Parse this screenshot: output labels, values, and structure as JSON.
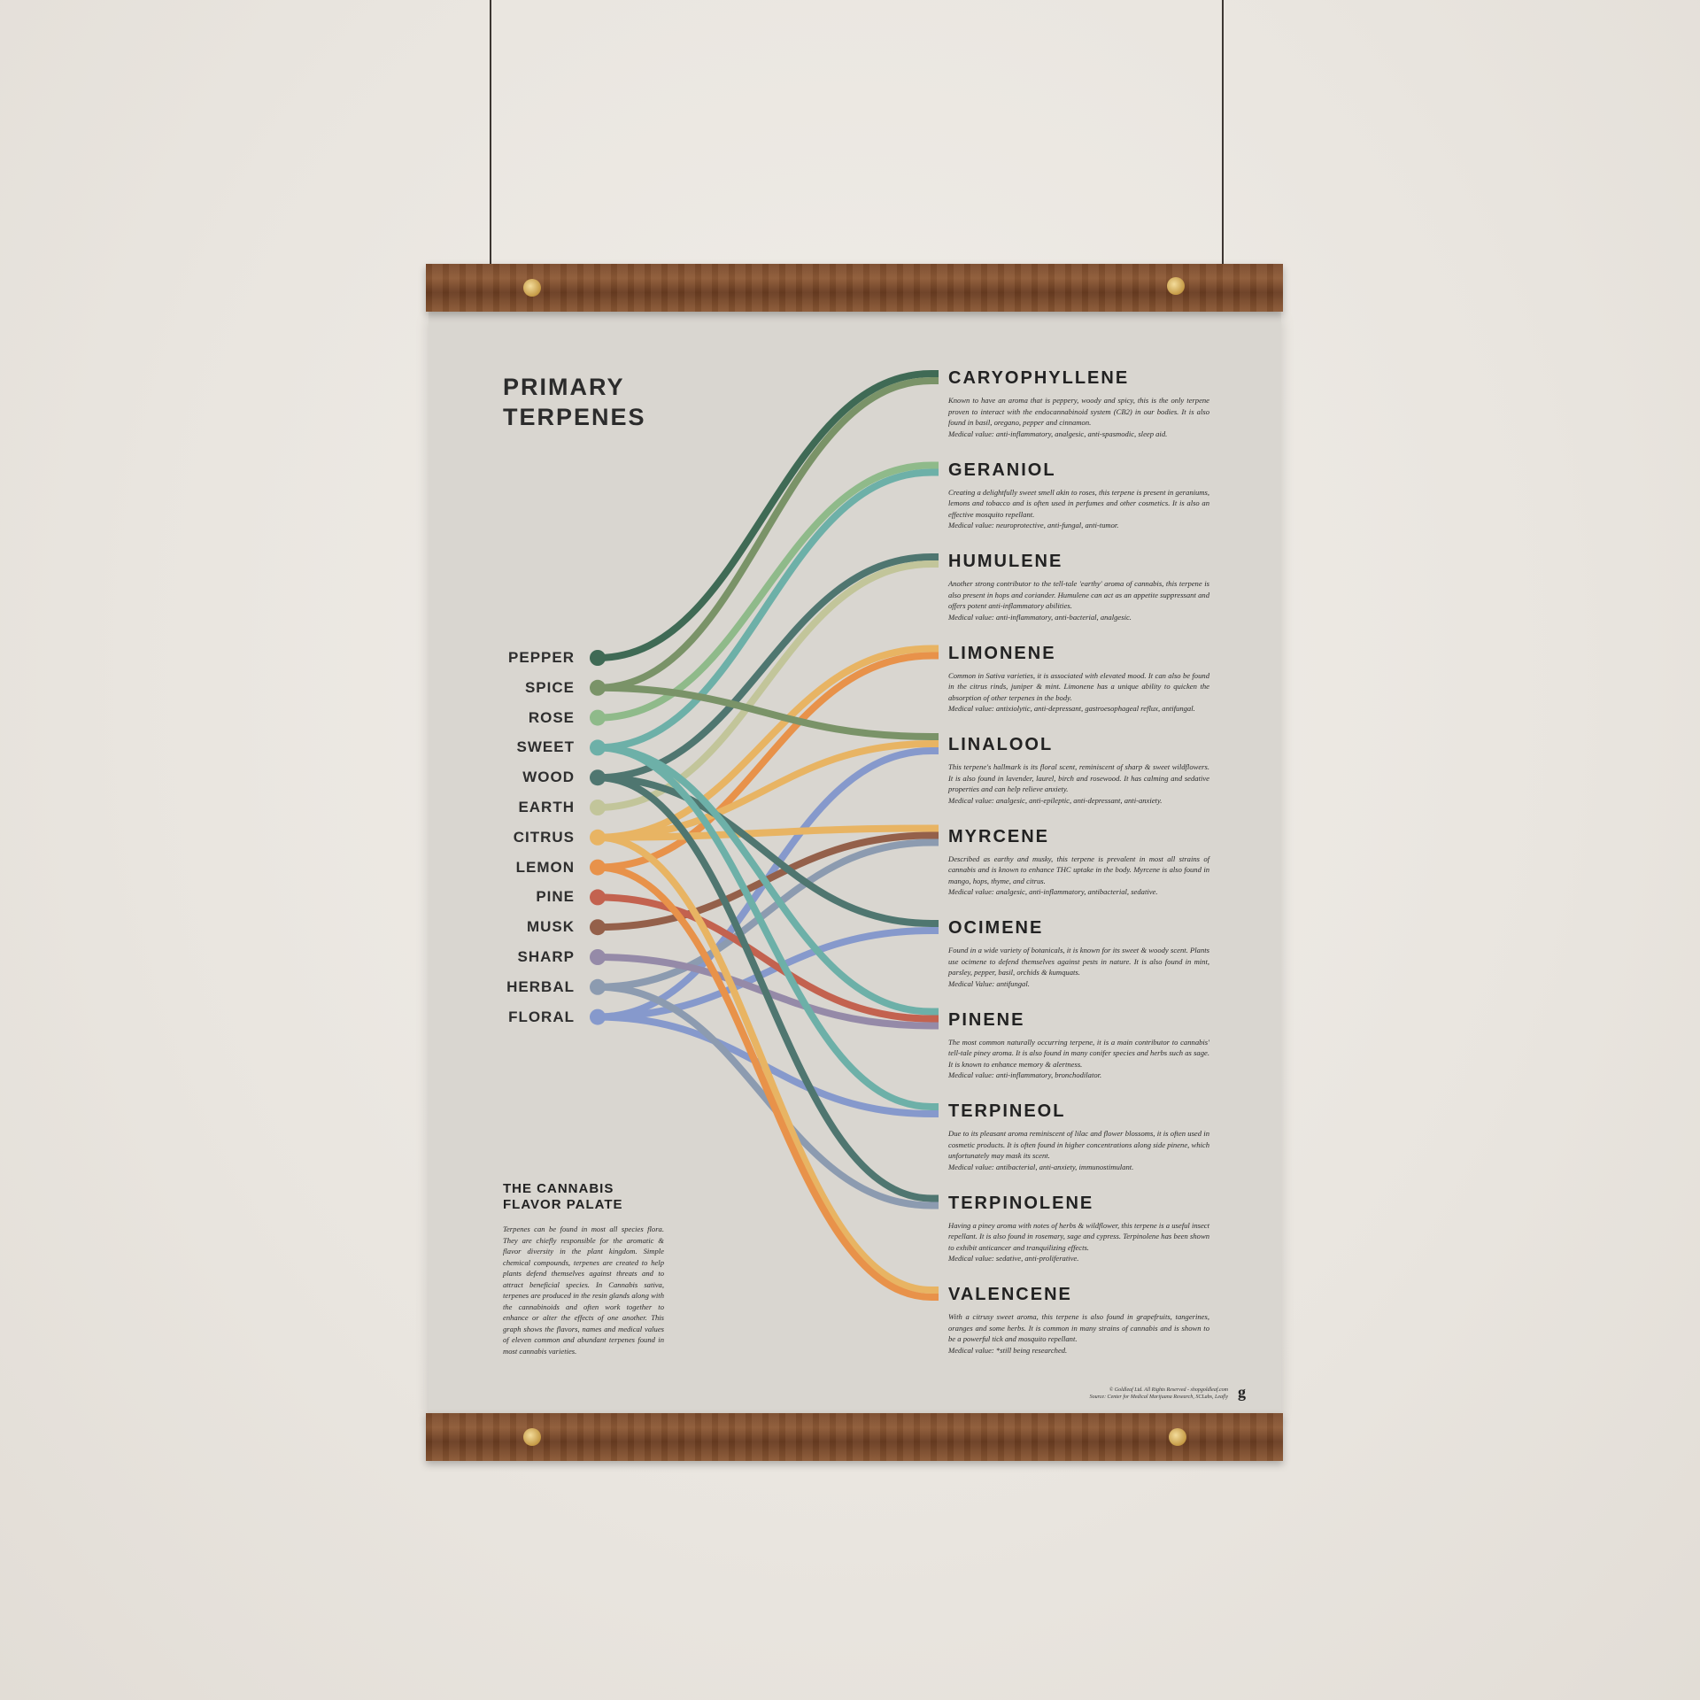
{
  "title": [
    "PRIMARY",
    "TERPENES"
  ],
  "colors": {
    "wall": "#ebe7e1",
    "paper": "#d9d6d0",
    "wood": "#7a4a2c"
  },
  "flavors": [
    {
      "label": "PEPPER",
      "color": "#3f6a55"
    },
    {
      "label": "SPICE",
      "color": "#7a9368"
    },
    {
      "label": "ROSE",
      "color": "#8fba8a"
    },
    {
      "label": "SWEET",
      "color": "#6db0a8"
    },
    {
      "label": "WOOD",
      "color": "#4f7670"
    },
    {
      "label": "EARTH",
      "color": "#c2c59a"
    },
    {
      "label": "CITRUS",
      "color": "#e8b463"
    },
    {
      "label": "LEMON",
      "color": "#e8924a"
    },
    {
      "label": "PINE",
      "color": "#c3624f"
    },
    {
      "label": "MUSK",
      "color": "#94604a"
    },
    {
      "label": "SHARP",
      "color": "#958aa8"
    },
    {
      "label": "HERBAL",
      "color": "#8c9bb0"
    },
    {
      "label": "FLORAL",
      "color": "#8699cc"
    }
  ],
  "terpenes": [
    {
      "name": "CARYOPHYLLENE",
      "flavors": [
        "PEPPER",
        "SPICE"
      ],
      "desc": "Known to have an aroma that is peppery, woody and spicy, this is the only terpene proven to interact with the endocannabinoid system (CB2) in our bodies. It is also found in basil, oregano, pepper and cinnamon.",
      "medical": "Medical value: anti-inflammatory, analgesic, anti-spasmodic, sleep aid."
    },
    {
      "name": "GERANIOL",
      "flavors": [
        "ROSE",
        "SWEET"
      ],
      "desc": "Creating a delightfully sweet smell akin to roses, this terpene is present in geraniums, lemons and tobacco and is often used in perfumes and other cosmetics. It is also an effective mosquito repellant.",
      "medical": "Medical value: neuroprotective, anti-fungal, anti-tumor."
    },
    {
      "name": "HUMULENE",
      "flavors": [
        "WOOD",
        "EARTH"
      ],
      "desc": "Another strong contributor to the tell-tale 'earthy' aroma of cannabis, this terpene is also present in hops and coriander. Humulene can act as an appetite suppressant and offers potent anti-inflammatory abilities.",
      "medical": "Medical value: anti-inflammatory, anti-bacterial, analgesic."
    },
    {
      "name": "LIMONENE",
      "flavors": [
        "CITRUS",
        "LEMON"
      ],
      "desc": "Common in Sativa varieties, it is associated with elevated mood. It can also be found in the citrus rinds, juniper & mint. Limonene has a unique ability to quicken the absorption of other terpenes in the body.",
      "medical": "Medical value: antixiolytic, anti-depressant, gastroesophageal reflux, antifungal."
    },
    {
      "name": "LINALOOL",
      "flavors": [
        "SPICE",
        "CITRUS",
        "FLORAL"
      ],
      "desc": "This terpene's hallmark is its floral scent, reminiscent of sharp & sweet wildflowers. It is also found in lavender, laurel, birch and rosewood. It has calming and sedative properties and can help relieve anxiety.",
      "medical": "Medical value: analgesic, anti-epileptic, anti-depressant, anti-anxiety."
    },
    {
      "name": "MYRCENE",
      "flavors": [
        "CITRUS",
        "MUSK",
        "HERBAL"
      ],
      "desc": "Described as earthy and musky, this terpene is prevalent in most all strains of cannabis and is known to enhance THC uptake in the body. Myrcene is also found in mango, hops, thyme, and citrus.",
      "medical": "Medical value: analgesic, anti-inflammatory, antibacterial, sedative."
    },
    {
      "name": "OCIMENE",
      "flavors": [
        "WOOD",
        "FLORAL"
      ],
      "desc": "Found in a wide variety of botanicals, it is known for its sweet & woody scent. Plants use ocimene to defend themselves against pests in nature. It is also found in mint, parsley, pepper, basil, orchids & kumquats.",
      "medical": "Medical Value: antifungal."
    },
    {
      "name": "PINENE",
      "flavors": [
        "SWEET",
        "PINE",
        "SHARP"
      ],
      "desc": "The most common naturally occurring terpene, it is a main contributor to cannabis' tell-tale piney aroma. It is also found in many conifer species and herbs such as sage. It is known to enhance memory & alertness.",
      "medical": "Medical value: anti-inflammatory, bronchodilator."
    },
    {
      "name": "TERPINEOL",
      "flavors": [
        "SWEET",
        "FLORAL"
      ],
      "desc": "Due to its pleasant aroma reminiscent of lilac and flower blossoms, it is often used in cosmetic products. It is often found in higher concentrations along side pinene, which unfortunately may mask its scent.",
      "medical": "Medical value: antibacterial, anti-anxiety, immunostimulant."
    },
    {
      "name": "TERPINOLENE",
      "flavors": [
        "WOOD",
        "HERBAL"
      ],
      "desc": "Having a piney aroma with notes of herbs & wildflower, this terpene is a useful insect repellant. It is also found in rosemary, sage and cypress. Terpinolene has been shown to exhibit anticancer and tranquilizing effects.",
      "medical": "Medical value: sedative, anti-proliferative."
    },
    {
      "name": "VALENCENE",
      "flavors": [
        "CITRUS",
        "LEMON"
      ],
      "desc": "With a citrusy sweet aroma, this terpene is also found in grapefruits, tangerines, oranges and some herbs. It is common in many strains of cannabis and is shown to be a powerful tick and mosquito repellant.",
      "medical": "Medical value: *still being researched."
    }
  ],
  "about": {
    "heading": [
      "THE CANNABIS",
      "FLAVOR PALATE"
    ],
    "body": "Terpenes can be found in most all species flora. They are chiefly responsible for the aromatic & flavor diversity in the plant kingdom. Simple chemical compounds, terpenes are created to help plants defend themselves against threats and to attract beneficial species. In Cannabis sativa, terpenes are produced in the resin glands along with the cannabinoids and often work together to enhance or alter the effects of one another. This graph shows the flavors, names and medical values of eleven common and abundant terpenes found in most cannabis varieties."
  },
  "credit": [
    "© Goldleaf Ltd. All Rights Reserved - shopgoldleaf.com",
    "Source: Center for Medical Marijuana Research, SCLabs, Leafly"
  ],
  "logo": "g"
}
